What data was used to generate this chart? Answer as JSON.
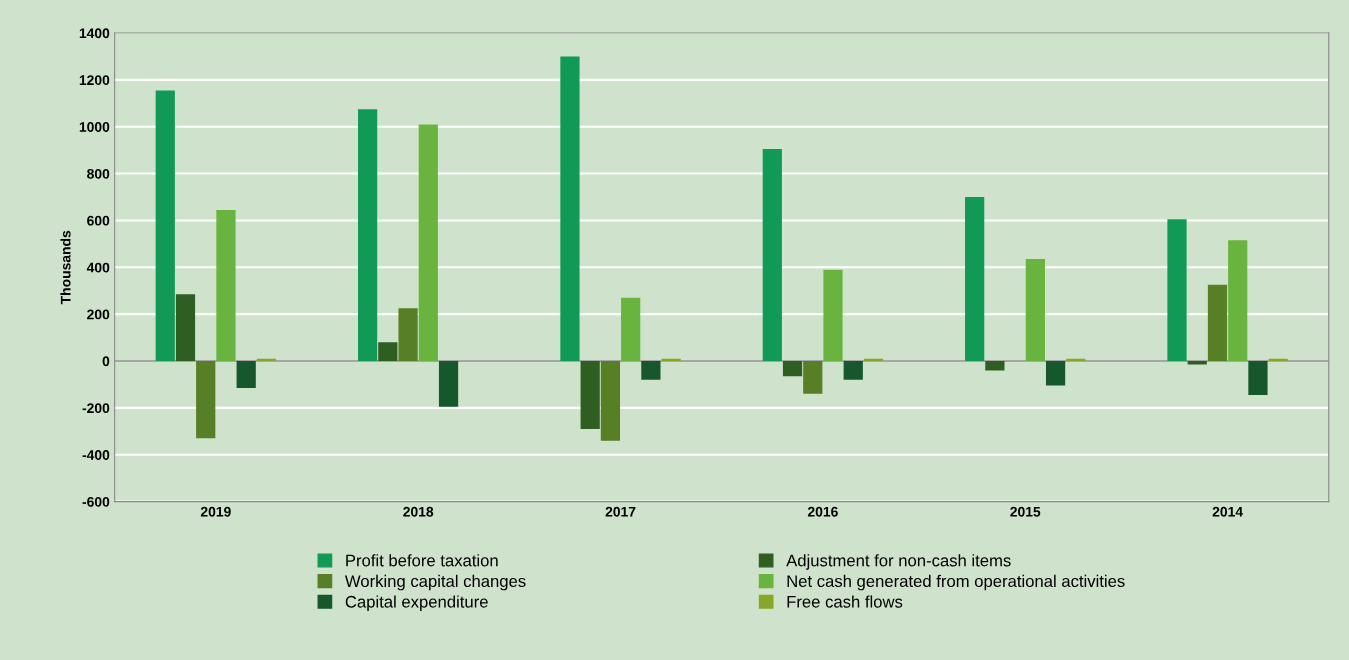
{
  "chart_data": {
    "type": "bar",
    "ylabel": "Thousands",
    "categories": [
      "2019",
      "2018",
      "2017",
      "2016",
      "2015",
      "2014"
    ],
    "series": [
      {
        "name": "Profit before taxation",
        "color": "#119a55",
        "values": [
          1155,
          1075,
          1300,
          905,
          700,
          605
        ]
      },
      {
        "name": "Adjustment for non-cash items",
        "color": "#2f5e22",
        "values": [
          285,
          80,
          -290,
          -65,
          -40,
          -15
        ]
      },
      {
        "name": "Working capital changes",
        "color": "#567f26",
        "values": [
          -330,
          225,
          -340,
          -140,
          0,
          325
        ]
      },
      {
        "name": "Net cash generated from operational activities",
        "color": "#69b43f",
        "values": [
          645,
          1010,
          270,
          390,
          435,
          515
        ]
      },
      {
        "name": "Capital expenditure",
        "color": "#17572c",
        "values": [
          -115,
          -195,
          -80,
          -80,
          -105,
          -145
        ]
      },
      {
        "name": "Free cash flows",
        "color": "#8aa52c",
        "values": [
          10,
          0,
          10,
          10,
          10,
          10
        ]
      }
    ],
    "ylim": [
      -600,
      1400
    ],
    "yticks": [
      -600,
      -400,
      -200,
      0,
      200,
      400,
      600,
      800,
      1000,
      1200,
      1400
    ],
    "grid": "y",
    "legend": "bottom"
  }
}
